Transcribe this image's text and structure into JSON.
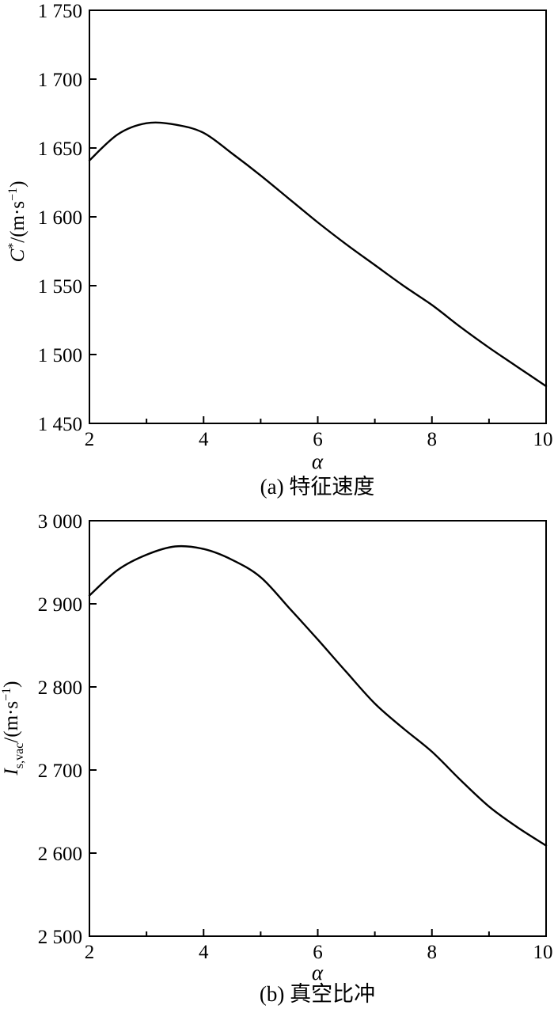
{
  "figure": {
    "background_color": "#ffffff",
    "line_color": "#000000",
    "panel_count": 2
  },
  "chart_data": [
    {
      "type": "line",
      "panel_id": "a",
      "title": "(a) 特征速度",
      "xlabel": "α",
      "ylabel": "C*/(m·s−1)",
      "ylabel_parts": {
        "var": "C",
        "var_sup": "*",
        "unit_open": "/(m·s",
        "unit_sup": "−1",
        "unit_close": ")"
      },
      "x": [
        2,
        2.5,
        3,
        3.5,
        4,
        4.5,
        5,
        5.5,
        6,
        6.5,
        7,
        7.5,
        8,
        8.5,
        9,
        9.5,
        10
      ],
      "y": [
        1641,
        1660,
        1668,
        1667,
        1661,
        1646,
        1630,
        1613,
        1596,
        1580,
        1565,
        1550,
        1536,
        1520,
        1505,
        1491,
        1477
      ],
      "peak": {
        "x": 3.1,
        "y": 1668
      },
      "xlim": [
        2,
        10
      ],
      "ylim": [
        1450,
        1750
      ],
      "x_major_ticks": [
        2,
        4,
        6,
        8,
        10
      ],
      "x_tick_labels": [
        "2",
        "4",
        "6",
        "8",
        "10"
      ],
      "x_minor_ticks": [
        3,
        5,
        7,
        9
      ],
      "y_major_ticks": [
        1450,
        1500,
        1550,
        1600,
        1650,
        1700,
        1750
      ],
      "y_tick_labels": [
        "1 450",
        "1 500",
        "1 550",
        "1 600",
        "1 650",
        "1 700",
        "1 750"
      ],
      "grid": false,
      "legend": "none"
    },
    {
      "type": "line",
      "panel_id": "b",
      "title": "(b) 真空比冲",
      "xlabel": "α",
      "ylabel": "Is,vac/(m·s−1)",
      "ylabel_parts": {
        "var": "I",
        "var_sub": "s,vac",
        "unit_open": "/(m·s",
        "unit_sup": "−1",
        "unit_close": ")"
      },
      "x": [
        2,
        2.5,
        3,
        3.5,
        4,
        4.5,
        5,
        5.5,
        6,
        6.5,
        7,
        7.5,
        8,
        8.5,
        9,
        9.5,
        10
      ],
      "y": [
        2910,
        2941,
        2959,
        2969,
        2966,
        2953,
        2932,
        2895,
        2857,
        2818,
        2780,
        2750,
        2722,
        2688,
        2656,
        2631,
        2609
      ],
      "peak": {
        "x": 3.6,
        "y": 2970
      },
      "xlim": [
        2,
        10
      ],
      "ylim": [
        2500,
        3000
      ],
      "x_major_ticks": [
        2,
        4,
        6,
        8,
        10
      ],
      "x_tick_labels": [
        "2",
        "4",
        "6",
        "8",
        "10"
      ],
      "x_minor_ticks": [
        3,
        5,
        7,
        9
      ],
      "y_major_ticks": [
        2500,
        2600,
        2700,
        2800,
        2900,
        3000
      ],
      "y_tick_labels": [
        "2 500",
        "2 600",
        "2 700",
        "2 800",
        "2 900",
        "3 000"
      ],
      "grid": false,
      "legend": "none"
    }
  ]
}
